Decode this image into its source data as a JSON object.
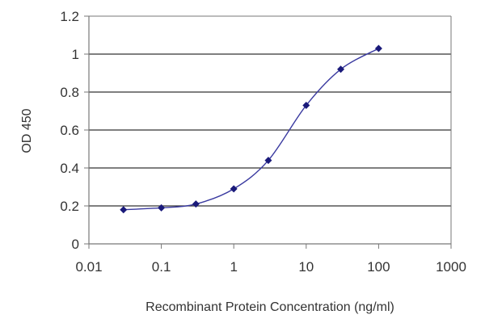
{
  "chart_data": {
    "type": "line",
    "title": "",
    "xlabel": "Recombinant Protein Concentration (ng/ml)",
    "ylabel": "OD 450",
    "x_scale": "log",
    "xlim": [
      0.01,
      1000
    ],
    "ylim": [
      0,
      1.2
    ],
    "x_ticks": [
      0.01,
      0.1,
      1,
      10,
      100,
      1000
    ],
    "x_tick_labels": [
      "0.01",
      "0.1",
      "1",
      "10",
      "100",
      "1000"
    ],
    "y_ticks": [
      0,
      0.2,
      0.4,
      0.6,
      0.8,
      1,
      1.2
    ],
    "y_tick_labels": [
      "0",
      "0.2",
      "0.4",
      "0.6",
      "0.8",
      "1",
      "1.2"
    ],
    "grid": "horizontal",
    "legend": "none",
    "colors": {
      "line": "#3a3aa0",
      "marker": "#1a1a7a",
      "grid": "#333333",
      "axis": "#777777"
    },
    "series": [
      {
        "x": [
          0.03,
          0.1,
          0.3,
          1,
          3,
          10,
          30,
          100
        ],
        "y": [
          0.18,
          0.19,
          0.21,
          0.29,
          0.44,
          0.73,
          0.92,
          1.03
        ]
      }
    ]
  }
}
